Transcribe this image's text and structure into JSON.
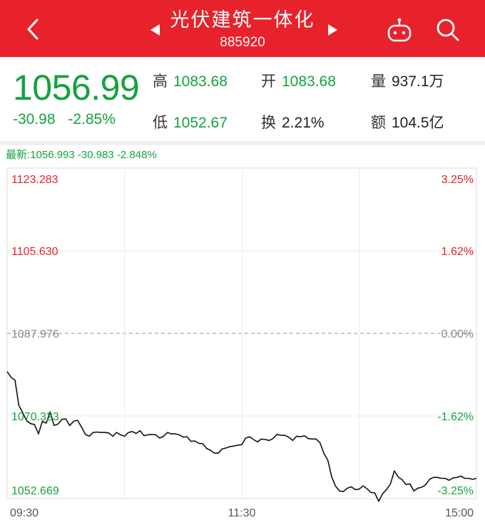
{
  "header": {
    "title": "光伏建筑一体化",
    "code": "885920"
  },
  "quote": {
    "price": "1056.99",
    "change": "-30.98",
    "change_pct": "-2.85%",
    "high_label": "高",
    "high": "1083.68",
    "open_label": "开",
    "open": "1083.68",
    "volume_label": "量",
    "volume": "937.1万",
    "low_label": "低",
    "low": "1052.67",
    "turnover_label": "换",
    "turnover": "2.21%",
    "amount_label": "额",
    "amount": "104.5亿"
  },
  "latest_line": "最新:1056.993 -30.983 -2.848%",
  "colors": {
    "up": "#e8222b",
    "down": "#14a23f",
    "header": "#e8222b"
  },
  "chart_data": {
    "type": "line",
    "y_labels_left": [
      "1123.283",
      "1105.630",
      "1087.976",
      "1070.323",
      "1052.669"
    ],
    "y_labels_right": [
      "3.25%",
      "1.62%",
      "0.00%",
      "-1.62%",
      "-3.25%"
    ],
    "x_labels": [
      "09:30",
      "11:30",
      "15:00"
    ],
    "ylim": [
      1052.669,
      1123.283
    ],
    "prev_close": 1087.976,
    "x": [
      0,
      2,
      4,
      6,
      8,
      10,
      12,
      14,
      16,
      18,
      20,
      22,
      24,
      26,
      28,
      30,
      32,
      34,
      36,
      38,
      40,
      42,
      44,
      46,
      48,
      50,
      52,
      54,
      56,
      58,
      60,
      62,
      64,
      66,
      68,
      70,
      72,
      74,
      76,
      78,
      80,
      82,
      84,
      86,
      88,
      90,
      92,
      94,
      96,
      98,
      100,
      102,
      104,
      106,
      108,
      110,
      112,
      114,
      116,
      118,
      120,
      122,
      124,
      126,
      128,
      130,
      132,
      134,
      136,
      138,
      140,
      142,
      144,
      146,
      148,
      150,
      152,
      154,
      156,
      158,
      160,
      162,
      164,
      166,
      168,
      170,
      172,
      174,
      176,
      178,
      180,
      182,
      184,
      186,
      188,
      190,
      192,
      194,
      196,
      198,
      200,
      202,
      204,
      206,
      208,
      210,
      212,
      214,
      216,
      218,
      220,
      222,
      224,
      226,
      228,
      230,
      232,
      234,
      236,
      238,
      240
    ],
    "values": [
      1079.8,
      1078.6,
      1078.0,
      1072.6,
      1071.0,
      1069.3,
      1068.7,
      1068.5,
      1066.5,
      1069.2,
      1068.8,
      1071.2,
      1068.3,
      1068.6,
      1069.6,
      1069.7,
      1068.3,
      1069.2,
      1069.4,
      1068.0,
      1066.4,
      1066.0,
      1066.8,
      1066.9,
      1066.8,
      1066.8,
      1066.7,
      1066.0,
      1066.8,
      1066.3,
      1066.0,
      1066.8,
      1067.0,
      1066.6,
      1067.2,
      1066.1,
      1066.3,
      1066.4,
      1066.3,
      1065.6,
      1066.0,
      1066.8,
      1066.5,
      1066.5,
      1066.3,
      1065.8,
      1065.9,
      1064.9,
      1065.0,
      1064.5,
      1064.4,
      1063.4,
      1063.0,
      1062.4,
      1062.4,
      1063.3,
      1063.5,
      1063.8,
      1063.9,
      1064.1,
      1064.2,
      1065.6,
      1065.9,
      1065.3,
      1064.8,
      1065.4,
      1065.3,
      1065.1,
      1065.5,
      1066.4,
      1066.2,
      1066.2,
      1065.8,
      1065.1,
      1066.0,
      1065.9,
      1066.1,
      1065.5,
      1065.4,
      1065.4,
      1064.6,
      1062.3,
      1060.9,
      1057.3,
      1055.3,
      1054.3,
      1054.2,
      1054.9,
      1055.2,
      1054.6,
      1054.7,
      1055.4,
      1054.8,
      1054.0,
      1053.9,
      1052.1,
      1053.7,
      1054.6,
      1055.8,
      1058.6,
      1057.3,
      1056.7,
      1055.7,
      1055.8,
      1054.3,
      1054.9,
      1055.1,
      1055.6,
      1056.8,
      1057.2,
      1057.2,
      1057.0,
      1057.0,
      1056.6,
      1057.1,
      1057.2,
      1057.5,
      1057.0,
      1057.0,
      1056.8,
      1057.0
    ]
  }
}
